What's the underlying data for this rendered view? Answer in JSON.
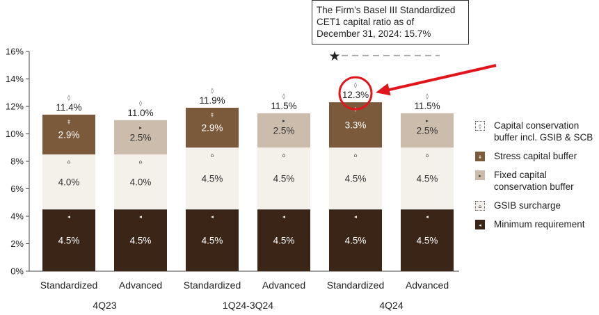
{
  "callout": {
    "lines": [
      "The Firm’s Basel III Standardized",
      "CET1 capital ratio as of",
      "December 31, 2024: 15.7%"
    ]
  },
  "legend": [
    {
      "label": "Capital conservation buffer incl. GSIB & SCB",
      "lines": [
        "Capital conservation",
        "buffer incl. GSIB & SCB"
      ],
      "color": "#ffffff",
      "marker": "◊",
      "border": "dotted"
    },
    {
      "label": "Stress capital buffer",
      "lines": [
        "Stress capital buffer"
      ],
      "color": "#7b5a3c",
      "marker": "‡",
      "border": "solid"
    },
    {
      "label": "Fixed capital conservation buffer",
      "lines": [
        "Fixed capital",
        "conservation buffer"
      ],
      "color": "#cbbcab",
      "marker": "▸",
      "border": "solid"
    },
    {
      "label": "GSIB surcharge",
      "lines": [
        "GSIB surcharge"
      ],
      "color": "#f4f0ea",
      "marker": "⌂",
      "border": "dotted"
    },
    {
      "label": "Minimum requirement",
      "lines": [
        "Minimum requirement"
      ],
      "color": "#3a2517",
      "marker": "◂",
      "border": "solid"
    }
  ],
  "chart_data": {
    "type": "bar",
    "stacked": true,
    "y_ticks": [
      "0%",
      "2%",
      "4%",
      "6%",
      "8%",
      "10%",
      "12%",
      "14%",
      "16%"
    ],
    "ylim": [
      0,
      16
    ],
    "grid": false,
    "legend_position": "right",
    "highlight": {
      "target": "12.3%",
      "marker": "star",
      "target_value": 15.7
    },
    "groups": [
      {
        "label": "4Q23",
        "bars": [
          0,
          1
        ]
      },
      {
        "label": "1Q24-3Q24",
        "bars": [
          2,
          3
        ]
      },
      {
        "label": "4Q24",
        "bars": [
          4,
          5
        ]
      }
    ],
    "bars": [
      {
        "label": "Standardized",
        "segments": [
          {
            "value": 4.5,
            "label": "4.5%",
            "color": "#3a2517",
            "text_color": "#ffffff",
            "marker": "◂"
          },
          {
            "value": 4.0,
            "label": "4.0%",
            "color": "#f4f0ea",
            "text_color": "#333333",
            "marker": "⌂"
          },
          {
            "value": 2.9,
            "label": "2.9%",
            "color": "#7b5a3c",
            "text_color": "#ffffff",
            "marker": "‡"
          }
        ],
        "total_label": "11.4%"
      },
      {
        "label": "Advanced",
        "segments": [
          {
            "value": 4.5,
            "label": "4.5%",
            "color": "#3a2517",
            "text_color": "#ffffff",
            "marker": "◂"
          },
          {
            "value": 4.0,
            "label": "4.0%",
            "color": "#f4f0ea",
            "text_color": "#333333",
            "marker": "⌂"
          },
          {
            "value": 2.5,
            "label": "2.5%",
            "color": "#cbbcab",
            "text_color": "#333333",
            "marker": "▸"
          }
        ],
        "total_label": "11.0%"
      },
      {
        "label": "Standardized",
        "segments": [
          {
            "value": 4.5,
            "label": "4.5%",
            "color": "#3a2517",
            "text_color": "#ffffff",
            "marker": "◂"
          },
          {
            "value": 4.5,
            "label": "4.5%",
            "color": "#f4f0ea",
            "text_color": "#333333",
            "marker": "⌂"
          },
          {
            "value": 2.9,
            "label": "2.9%",
            "color": "#7b5a3c",
            "text_color": "#ffffff",
            "marker": "‡"
          }
        ],
        "total_label": "11.9%"
      },
      {
        "label": "Advanced",
        "segments": [
          {
            "value": 4.5,
            "label": "4.5%",
            "color": "#3a2517",
            "text_color": "#ffffff",
            "marker": "◂"
          },
          {
            "value": 4.5,
            "label": "4.5%",
            "color": "#f4f0ea",
            "text_color": "#333333",
            "marker": "⌂"
          },
          {
            "value": 2.5,
            "label": "2.5%",
            "color": "#cbbcab",
            "text_color": "#333333",
            "marker": "▸"
          }
        ],
        "total_label": "11.5%"
      },
      {
        "label": "Standardized",
        "segments": [
          {
            "value": 4.5,
            "label": "4.5%",
            "color": "#3a2517",
            "text_color": "#ffffff",
            "marker": "◂"
          },
          {
            "value": 4.5,
            "label": "4.5%",
            "color": "#f4f0ea",
            "text_color": "#333333",
            "marker": "⌂"
          },
          {
            "value": 3.3,
            "label": "3.3%",
            "color": "#7b5a3c",
            "text_color": "#ffffff",
            "marker": "‡"
          }
        ],
        "total_label": "12.3%"
      },
      {
        "label": "Advanced",
        "segments": [
          {
            "value": 4.5,
            "label": "4.5%",
            "color": "#3a2517",
            "text_color": "#ffffff",
            "marker": "◂"
          },
          {
            "value": 4.5,
            "label": "4.5%",
            "color": "#f4f0ea",
            "text_color": "#333333",
            "marker": "⌂"
          },
          {
            "value": 2.5,
            "label": "2.5%",
            "color": "#cbbcab",
            "text_color": "#333333",
            "marker": "▸"
          }
        ],
        "total_label": "11.5%"
      }
    ]
  }
}
